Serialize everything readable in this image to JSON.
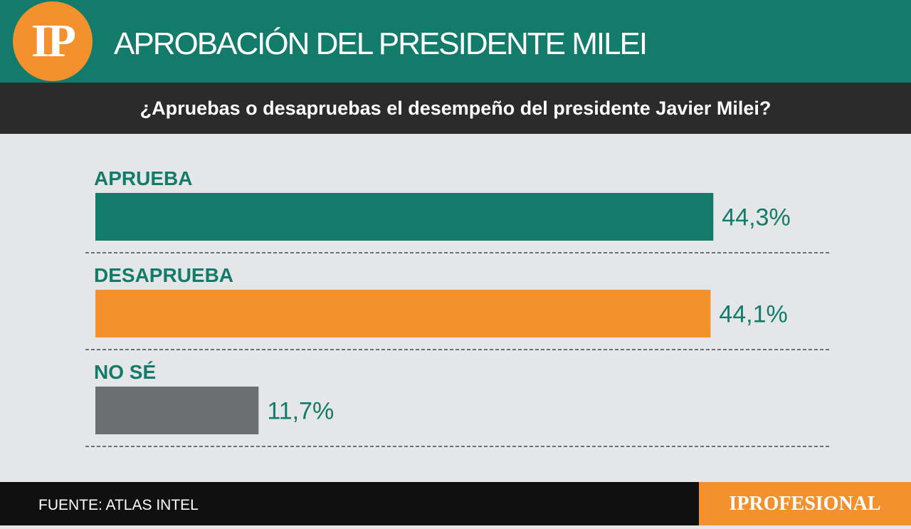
{
  "header": {
    "logo_text": "IP",
    "title": "APROBACIÓN DEL PRESIDENTE MILEI"
  },
  "subheader": {
    "question": "¿Apruebas o desapruebas el desempeño del presidente Javier Milei?"
  },
  "footer": {
    "source": "FUENTE: ATLAS INTEL",
    "brand": "IPROFESIONAL"
  },
  "colors": {
    "header_bg": "#137b69",
    "subheader_bg": "#2c2b2c",
    "accent_orange": "#f4912f",
    "background": "#e4e6e7"
  },
  "chart_data": {
    "type": "bar",
    "orientation": "horizontal",
    "title": "APROBACIÓN DEL PRESIDENTE MILEI",
    "subtitle": "¿Apruebas o desapruebas el desempeño del presidente Javier Milei?",
    "categories": [
      "APRUEBA",
      "DESAPRUEBA",
      "NO SÉ"
    ],
    "values": [
      44.3,
      44.1,
      11.7
    ],
    "value_labels": [
      "44,3%",
      "44,1%",
      "11,7%"
    ],
    "bar_colors": [
      "#137b69",
      "#f4912f",
      "#6d6e70"
    ],
    "label_color": "#137b69",
    "unit": "%",
    "grid": false
  }
}
